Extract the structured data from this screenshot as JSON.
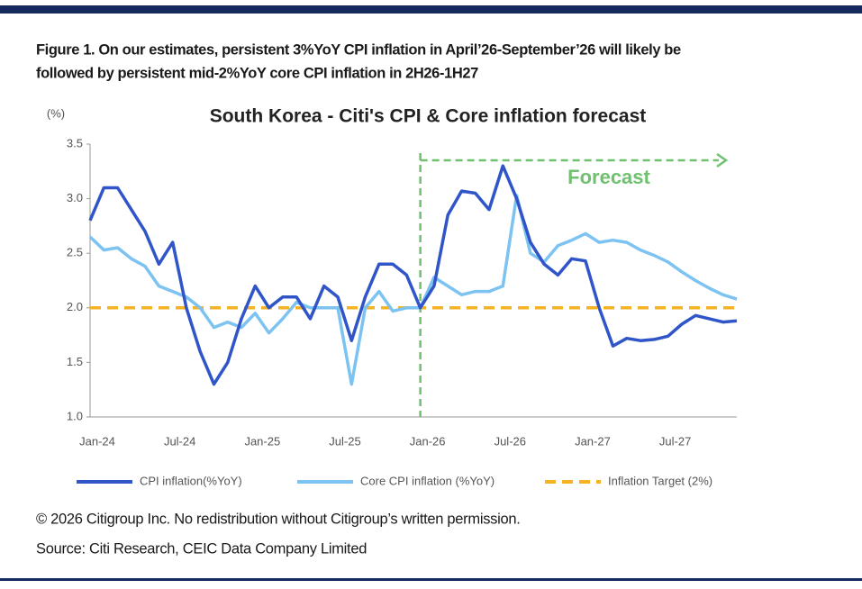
{
  "caption": {
    "lines": [
      "Figure 1. On our estimates, persistent 3%YoY CPI inflation in April’26-September’26 will likely be",
      "followed by persistent mid-2%YoY core CPI inflation in 2H26-1H27"
    ]
  },
  "chart_data": {
    "type": "line",
    "title": "South Korea - Citi's CPI & Core inflation forecast",
    "y_unit": "(%)",
    "categories": [
      "Jan-24",
      null,
      null,
      null,
      null,
      null,
      "Jul-24",
      null,
      null,
      null,
      null,
      null,
      "Jan-25",
      null,
      null,
      null,
      null,
      null,
      "Jul-25",
      null,
      null,
      null,
      null,
      null,
      "Jan-26",
      null,
      null,
      null,
      null,
      null,
      "Jul-26",
      null,
      null,
      null,
      null,
      null,
      "Jan-27",
      null,
      null,
      null,
      null,
      null,
      "Jul-27",
      null,
      null,
      null,
      null,
      null
    ],
    "series": [
      {
        "name": "CPI inflation(%YoY)",
        "color": "#2f55c9",
        "values": [
          2.8,
          3.1,
          3.1,
          2.9,
          2.7,
          2.4,
          2.6,
          2.0,
          1.6,
          1.3,
          1.5,
          1.9,
          2.2,
          2.0,
          2.1,
          2.1,
          1.9,
          2.2,
          2.1,
          1.7,
          2.1,
          2.4,
          2.4,
          2.3,
          2.0,
          2.2,
          2.85,
          3.07,
          3.05,
          2.9,
          3.3,
          3.0,
          2.6,
          2.4,
          2.3,
          2.45,
          2.43,
          2.0,
          1.65,
          1.72,
          1.7,
          1.71,
          1.74,
          1.85,
          1.93,
          1.9,
          1.87,
          1.88
        ]
      },
      {
        "name": "Core CPI inflation (%YoY)",
        "color": "#7cc3f2",
        "values": [
          2.65,
          2.53,
          2.55,
          2.45,
          2.38,
          2.2,
          2.15,
          2.1,
          2.0,
          1.82,
          1.87,
          1.82,
          1.95,
          1.77,
          1.9,
          2.05,
          2.0,
          2.0,
          2.0,
          1.3,
          2.0,
          2.15,
          1.97,
          2.0,
          2.0,
          2.28,
          2.2,
          2.12,
          2.15,
          2.15,
          2.2,
          3.03,
          2.5,
          2.42,
          2.57,
          2.62,
          2.68,
          2.6,
          2.62,
          2.6,
          2.53,
          2.48,
          2.42,
          2.33,
          2.25,
          2.18,
          2.12,
          2.08
        ]
      }
    ],
    "reference_lines": [
      {
        "name": "Inflation Target (2%)",
        "value": 2,
        "color": "#f5b323"
      }
    ],
    "forecast": {
      "label": "Forecast",
      "start": "Jan-26",
      "color": "#6fc06f"
    },
    "ylim": [
      1,
      3.5
    ],
    "yticks": [
      {
        "value": 1,
        "label": "1.0"
      },
      1.5,
      {
        "value": 2,
        "label": "2.0"
      },
      2.5,
      {
        "value": 3,
        "label": "3.0"
      },
      3.5
    ],
    "grid": false
  },
  "footer": {
    "copyright": "© 2026 Citigroup Inc. No redistribution without Citigroup’s written permission.",
    "source": "Source: Citi Research, CEIC Data Company Limited"
  }
}
